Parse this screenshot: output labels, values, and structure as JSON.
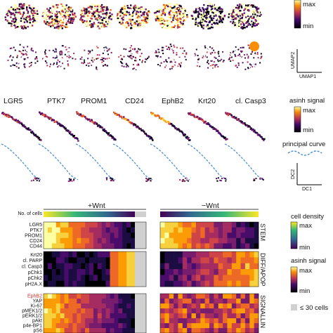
{
  "markers_top": [
    "LGR5",
    "PTK7",
    "PROM1",
    "CD24",
    "EphB2",
    "Krt20",
    "cl. Casp3"
  ],
  "legend_top": {
    "max": "max",
    "min": "min"
  },
  "umap_axes": {
    "y": "UMAP2",
    "x": "UMAP1"
  },
  "legend_signal": {
    "title": "asinh signal",
    "max": "max",
    "min": "min"
  },
  "principal_curve_label": "principal curve",
  "dc_axes": {
    "y": "DC2",
    "x": "DC1"
  },
  "condition_labels": {
    "plus": "+Wnt",
    "minus": "−Wnt"
  },
  "cells_row_label": "No. of cells",
  "groups": [
    {
      "name": "STEM",
      "rows": [
        "LGR5",
        "PTK7",
        "PROM1",
        "CD24",
        "CD44"
      ]
    },
    {
      "name": "DIFF/APOP",
      "rows": [
        "Krt20",
        "cl. PARP",
        "cl. Casp3",
        "pChk1",
        "pChk2",
        "pH2A.X"
      ]
    },
    {
      "name": "SIGNALLIN",
      "rows": [
        "EphB2",
        "YAP",
        "Ki-67",
        "pMEK1/2",
        "pERK1/2",
        "pAkt",
        "p4e-BP1",
        "pS6"
      ]
    }
  ],
  "highlight_row": "EphB2",
  "highlight_color": "#e0302a",
  "legend_density": {
    "title": "cell density",
    "max": "max",
    "min": "min"
  },
  "legend_signal2": {
    "title": "asinh signal",
    "max": "max",
    "min": "min"
  },
  "legend_gray": "≤ 30 cells",
  "colors": {
    "inferno_low": "#000004",
    "inferno_mid": "#bc3754",
    "inferno_high": "#fcffa4",
    "viridis_high": "#fde725",
    "viridis_low": "#440154",
    "curve": "#4a90d9",
    "gray_box": "#d0d0d0"
  }
}
